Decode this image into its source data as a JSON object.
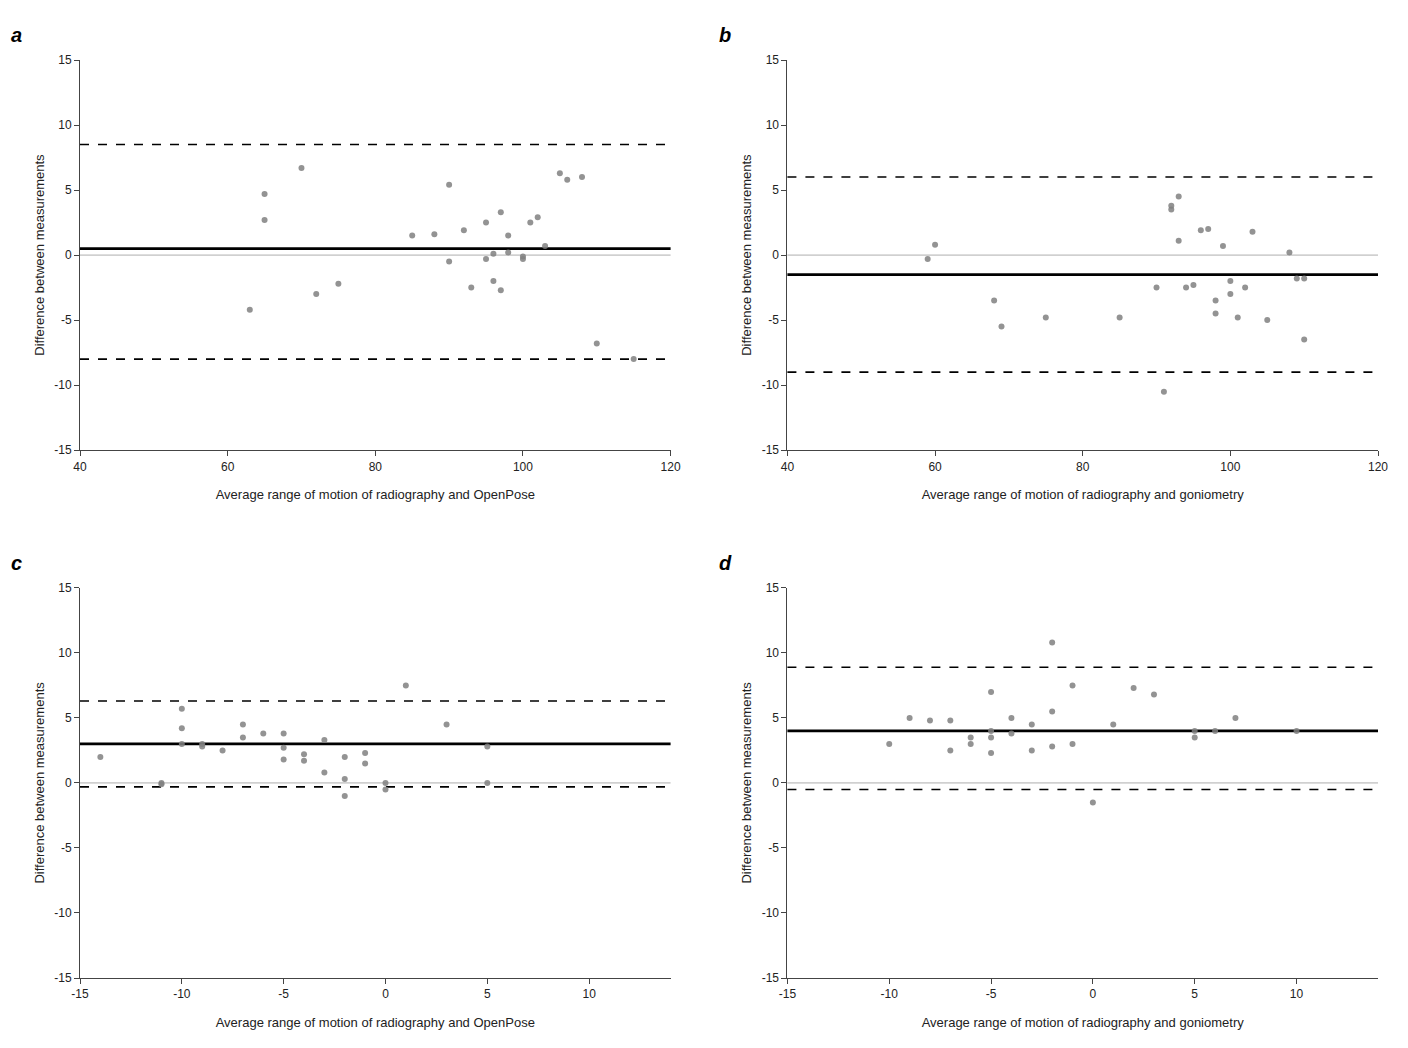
{
  "chart_data": [
    {
      "type": "scatter",
      "title": "a",
      "xlabel": "Average range of motion of radiography and OpenPose",
      "ylabel": "Difference between measurements",
      "xlim": [
        40,
        120
      ],
      "ylim": [
        -15,
        15
      ],
      "xticks": [
        40,
        60,
        80,
        100,
        120
      ],
      "yticks": [
        -15,
        -10,
        -5,
        0,
        5,
        10,
        15
      ],
      "grid": false,
      "color": "#808080",
      "reference_lines": [
        {
          "value": 0,
          "color": "#999999",
          "line_style": "solid"
        },
        {
          "value": 0.5,
          "color": "#000000",
          "line_style": "solid"
        },
        {
          "value": 8.5,
          "color": "#000000",
          "line_style": "dashed"
        },
        {
          "value": -8.0,
          "color": "#000000",
          "line_style": "dashed"
        }
      ],
      "x": [
        63,
        65,
        65,
        70,
        72,
        75,
        85,
        88,
        90,
        90,
        92,
        93,
        95,
        95,
        96,
        96,
        97,
        97,
        98,
        98,
        100,
        100,
        101,
        102,
        103,
        105,
        106,
        108,
        110,
        115
      ],
      "values": [
        -4.2,
        4.7,
        2.7,
        6.7,
        -3.0,
        -2.2,
        1.5,
        1.6,
        5.4,
        -0.5,
        1.9,
        -2.5,
        2.5,
        -0.3,
        -2.0,
        0.1,
        3.3,
        -2.7,
        1.5,
        0.2,
        -0.1,
        -0.3,
        2.5,
        2.9,
        0.7,
        6.3,
        5.8,
        6.0,
        -6.8,
        -8.0
      ]
    },
    {
      "type": "scatter",
      "title": "b",
      "xlabel": "Average range of motion of radiography and goniometry",
      "ylabel": "Difference between measurements",
      "xlim": [
        40,
        120
      ],
      "ylim": [
        -15,
        15
      ],
      "xticks": [
        40,
        60,
        80,
        100,
        120
      ],
      "yticks": [
        -15,
        -10,
        -5,
        0,
        5,
        10,
        15
      ],
      "grid": false,
      "color": "#808080",
      "reference_lines": [
        {
          "value": 0,
          "color": "#999999",
          "line_style": "solid"
        },
        {
          "value": -1.5,
          "color": "#000000",
          "line_style": "solid"
        },
        {
          "value": 6.0,
          "color": "#000000",
          "line_style": "dashed"
        },
        {
          "value": -9.0,
          "color": "#000000",
          "line_style": "dashed"
        }
      ],
      "x": [
        59,
        60,
        68,
        69,
        75,
        85,
        90,
        91,
        92,
        92,
        93,
        93,
        94,
        95,
        96,
        97,
        98,
        98,
        99,
        100,
        100,
        101,
        102,
        103,
        105,
        108,
        109,
        110,
        110
      ],
      "values": [
        -0.3,
        0.8,
        -3.5,
        -5.5,
        -4.8,
        -4.8,
        -2.5,
        -10.5,
        3.5,
        3.8,
        4.5,
        1.1,
        -2.5,
        -2.3,
        1.9,
        2.0,
        -3.5,
        -4.5,
        0.7,
        -2.0,
        -3.0,
        -4.8,
        -2.5,
        1.8,
        -5.0,
        0.2,
        -1.8,
        -1.8,
        -6.5
      ]
    },
    {
      "type": "scatter",
      "title": "c",
      "xlabel": "Average range of motion of radiography and OpenPose",
      "ylabel": "Difference between measurements",
      "xlim": [
        -15,
        14
      ],
      "ylim": [
        -15,
        15
      ],
      "xticks": [
        -15,
        -10,
        -5,
        0,
        5,
        10
      ],
      "yticks": [
        -15,
        -10,
        -5,
        0,
        5,
        10,
        15
      ],
      "grid": false,
      "color": "#808080",
      "reference_lines": [
        {
          "value": 0,
          "color": "#999999",
          "line_style": "solid"
        },
        {
          "value": 3.0,
          "color": "#000000",
          "line_style": "solid"
        },
        {
          "value": 6.3,
          "color": "#000000",
          "line_style": "dashed"
        },
        {
          "value": -0.3,
          "color": "#000000",
          "line_style": "dashed"
        }
      ],
      "x": [
        -14,
        -11,
        -11,
        -10,
        -10,
        -10,
        -9,
        -9,
        -8,
        -7,
        -7,
        -6,
        -5,
        -5,
        -5,
        -4,
        -4,
        -3,
        -3,
        -2,
        -2,
        -2,
        -1,
        -1,
        0,
        0,
        1,
        3,
        5,
        5
      ],
      "values": [
        2.0,
        0.0,
        -0.1,
        5.7,
        4.2,
        3.0,
        2.8,
        3.0,
        2.5,
        3.5,
        4.5,
        3.8,
        1.8,
        2.7,
        3.8,
        1.7,
        2.2,
        0.8,
        3.3,
        -1.0,
        2.0,
        0.3,
        2.3,
        1.5,
        -0.5,
        0.0,
        7.5,
        4.5,
        0.0,
        2.8
      ]
    },
    {
      "type": "scatter",
      "title": "d",
      "xlabel": "Average range of motion of radiography and goniometry",
      "ylabel": "Difference between measurements",
      "xlim": [
        -15,
        14
      ],
      "ylim": [
        -15,
        15
      ],
      "xticks": [
        -15,
        -10,
        -5,
        0,
        5,
        10
      ],
      "yticks": [
        -15,
        -10,
        -5,
        0,
        5,
        10,
        15
      ],
      "grid": false,
      "color": "#808080",
      "reference_lines": [
        {
          "value": 0,
          "color": "#999999",
          "line_style": "solid"
        },
        {
          "value": 4.0,
          "color": "#000000",
          "line_style": "solid"
        },
        {
          "value": 8.9,
          "color": "#000000",
          "line_style": "dashed"
        },
        {
          "value": -0.5,
          "color": "#000000",
          "line_style": "dashed"
        }
      ],
      "x": [
        -10,
        -9,
        -8,
        -7,
        -7,
        -6,
        -6,
        -5,
        -5,
        -5,
        -5,
        -4,
        -4,
        -3,
        -3,
        -2,
        -2,
        -2,
        -1,
        -1,
        0,
        1,
        2,
        3,
        5,
        5,
        6,
        7,
        10
      ],
      "values": [
        3.0,
        5.0,
        4.8,
        2.5,
        4.8,
        3.5,
        3.0,
        2.3,
        4.0,
        7.0,
        3.5,
        3.8,
        5.0,
        4.5,
        2.5,
        2.8,
        10.8,
        5.5,
        3.0,
        7.5,
        -1.5,
        4.5,
        7.3,
        6.8,
        4.0,
        3.5,
        4.0,
        5.0,
        4.0
      ]
    }
  ]
}
